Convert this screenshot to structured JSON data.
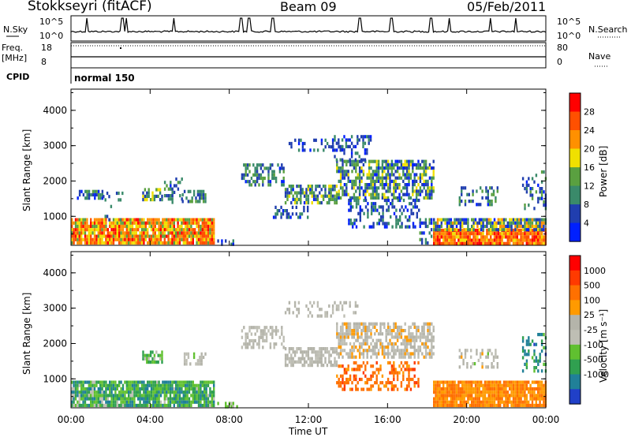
{
  "header": {
    "station": "Stokkseyri (fitACF)",
    "beam": "Beam 09",
    "date": "05/Feb/2011"
  },
  "status_panels": {
    "nsky_label": "N.Sky",
    "nsky_ticks": [
      "10^5",
      "10^0"
    ],
    "nsearch_label": "N.Search",
    "nsearch_ticks": [
      "10^5",
      "10^0"
    ],
    "freq_label": "Freq.",
    "freq_unit": "[MHz]",
    "freq_ticks": [
      "18",
      "8"
    ],
    "nave_label": "Nave",
    "nave_ticks": [
      "80",
      "0"
    ],
    "cpid_label": "CPID",
    "cpid_value": "normal 150"
  },
  "colors": {
    "power": [
      "#0020ff",
      "#203eaf",
      "#3a8a6a",
      "#5aa040",
      "#f0e000",
      "#ff9000",
      "#ff5000",
      "#ff0000"
    ],
    "velocity": [
      "#2040c8",
      "#208098",
      "#30a050",
      "#60c030",
      "#bebeb4",
      "#b4b4aa",
      "#ff9a00",
      "#ff7000",
      "#ff3a00",
      "#ff0000"
    ]
  },
  "chart_data": [
    {
      "type": "heatmap",
      "panel": "power",
      "ylabel": "Slant Range [km]",
      "yticks": [
        "1000",
        "2000",
        "3000",
        "4000"
      ],
      "ylim": [
        180,
        4600
      ],
      "xlim": [
        0,
        24
      ],
      "colorbar_label": "Power [dB]",
      "colorbar_ticks": [
        "4",
        "8",
        "12",
        "16",
        "20",
        "24",
        "28"
      ],
      "colorbar_range": [
        0,
        32
      ],
      "scatter_regions": [
        {
          "t0": 0.0,
          "t1": 7.2,
          "r0": 230,
          "r1": 950,
          "value": 22,
          "spread": 8,
          "density": 0.92
        },
        {
          "t0": 0.3,
          "t1": 1.6,
          "r0": 1500,
          "r1": 1750,
          "value": 8,
          "spread": 6,
          "density": 0.45
        },
        {
          "t0": 1.6,
          "t1": 2.6,
          "r0": 900,
          "r1": 1700,
          "value": 7,
          "spread": 4,
          "density": 0.12
        },
        {
          "t0": 3.6,
          "t1": 4.6,
          "r0": 1450,
          "r1": 1800,
          "value": 12,
          "spread": 8,
          "density": 0.6
        },
        {
          "t0": 4.7,
          "t1": 5.6,
          "r0": 1400,
          "r1": 2100,
          "value": 9,
          "spread": 6,
          "density": 0.35
        },
        {
          "t0": 5.6,
          "t1": 6.8,
          "r0": 1450,
          "r1": 1750,
          "value": 9,
          "spread": 5,
          "density": 0.55
        },
        {
          "t0": 8.6,
          "t1": 10.8,
          "r0": 1850,
          "r1": 2500,
          "value": 9,
          "spread": 6,
          "density": 0.5
        },
        {
          "t0": 10.8,
          "t1": 13.4,
          "r0": 1400,
          "r1": 1900,
          "value": 10,
          "spread": 7,
          "density": 0.7
        },
        {
          "t0": 13.4,
          "t1": 18.3,
          "r0": 1500,
          "r1": 2600,
          "value": 10,
          "spread": 8,
          "density": 0.65
        },
        {
          "t0": 11.0,
          "t1": 13.8,
          "r0": 2900,
          "r1": 3200,
          "value": 6,
          "spread": 4,
          "density": 0.25
        },
        {
          "t0": 13.0,
          "t1": 15.2,
          "r0": 2600,
          "r1": 3300,
          "value": 6,
          "spread": 4,
          "density": 0.3
        },
        {
          "t0": 14.0,
          "t1": 17.6,
          "r0": 700,
          "r1": 1500,
          "value": 7,
          "spread": 5,
          "density": 0.35
        },
        {
          "t0": 10.2,
          "t1": 12.0,
          "r0": 1000,
          "r1": 1300,
          "value": 6,
          "spread": 4,
          "density": 0.3
        },
        {
          "t0": 17.6,
          "t1": 18.2,
          "r0": 230,
          "r1": 950,
          "value": 8,
          "spread": 6,
          "density": 0.5
        },
        {
          "t0": 18.3,
          "t1": 24.0,
          "r0": 230,
          "r1": 650,
          "value": 25,
          "spread": 6,
          "density": 0.95
        },
        {
          "t0": 18.3,
          "t1": 24.0,
          "r0": 650,
          "r1": 950,
          "value": 12,
          "spread": 10,
          "density": 0.8
        },
        {
          "t0": 19.6,
          "t1": 21.6,
          "r0": 1350,
          "r1": 1850,
          "value": 9,
          "spread": 6,
          "density": 0.35
        },
        {
          "t0": 22.8,
          "t1": 24.0,
          "r0": 1200,
          "r1": 2300,
          "value": 8,
          "spread": 6,
          "density": 0.3
        },
        {
          "t0": 7.2,
          "t1": 8.4,
          "r0": 230,
          "r1": 350,
          "value": 5,
          "spread": 4,
          "density": 0.3
        }
      ]
    },
    {
      "type": "heatmap",
      "panel": "velocity",
      "ylabel": "Slant Range [km]",
      "yticks": [
        "1000",
        "2000",
        "3000",
        "4000"
      ],
      "ylim": [
        180,
        4600
      ],
      "xlim": [
        0,
        24
      ],
      "xticks": [
        "00:00",
        "04:00",
        "08:00",
        "12:00",
        "16:00",
        "20:00",
        "00:00"
      ],
      "xlabel": "Time UT",
      "colorbar_label": "Velocity [m s⁻¹]",
      "colorbar_ticks": [
        "1000",
        "500",
        "100",
        "25",
        "-25",
        "-100",
        "-500",
        "-1000"
      ],
      "scatter_regions": [
        {
          "t0": 0.0,
          "t1": 7.2,
          "r0": 230,
          "r1": 950,
          "value": 2.3,
          "spread": 1.4,
          "density": 0.88
        },
        {
          "t0": 3.6,
          "t1": 4.6,
          "r0": 1450,
          "r1": 1800,
          "value": 3.0,
          "spread": 1.2,
          "density": 0.55
        },
        {
          "t0": 5.6,
          "t1": 6.8,
          "r0": 1450,
          "r1": 1750,
          "value": 4.2,
          "spread": 0.8,
          "density": 0.5
        },
        {
          "t0": 8.6,
          "t1": 10.8,
          "r0": 1850,
          "r1": 2500,
          "value": 4.5,
          "spread": 0.4,
          "density": 0.55
        },
        {
          "t0": 10.8,
          "t1": 13.4,
          "r0": 1400,
          "r1": 1900,
          "value": 4.6,
          "spread": 0.6,
          "density": 0.7
        },
        {
          "t0": 13.4,
          "t1": 18.3,
          "r0": 1600,
          "r1": 2600,
          "value": 4.8,
          "spread": 1.2,
          "density": 0.65
        },
        {
          "t0": 13.4,
          "t1": 17.6,
          "r0": 700,
          "r1": 1500,
          "value": 7.0,
          "spread": 0.8,
          "density": 0.45
        },
        {
          "t0": 10.8,
          "t1": 14.5,
          "r0": 2800,
          "r1": 3200,
          "value": 4.6,
          "spread": 0.5,
          "density": 0.3
        },
        {
          "t0": 18.3,
          "t1": 24.0,
          "r0": 230,
          "r1": 950,
          "value": 6.5,
          "spread": 0.6,
          "density": 0.92
        },
        {
          "t0": 19.6,
          "t1": 21.6,
          "r0": 1350,
          "r1": 1850,
          "value": 4.5,
          "spread": 1.2,
          "density": 0.35
        },
        {
          "t0": 22.8,
          "t1": 24.0,
          "r0": 1200,
          "r1": 2300,
          "value": 1.6,
          "spread": 1.2,
          "density": 0.3
        },
        {
          "t0": 7.2,
          "t1": 8.4,
          "r0": 230,
          "r1": 350,
          "value": 3.2,
          "spread": 1.0,
          "density": 0.3
        }
      ]
    }
  ]
}
